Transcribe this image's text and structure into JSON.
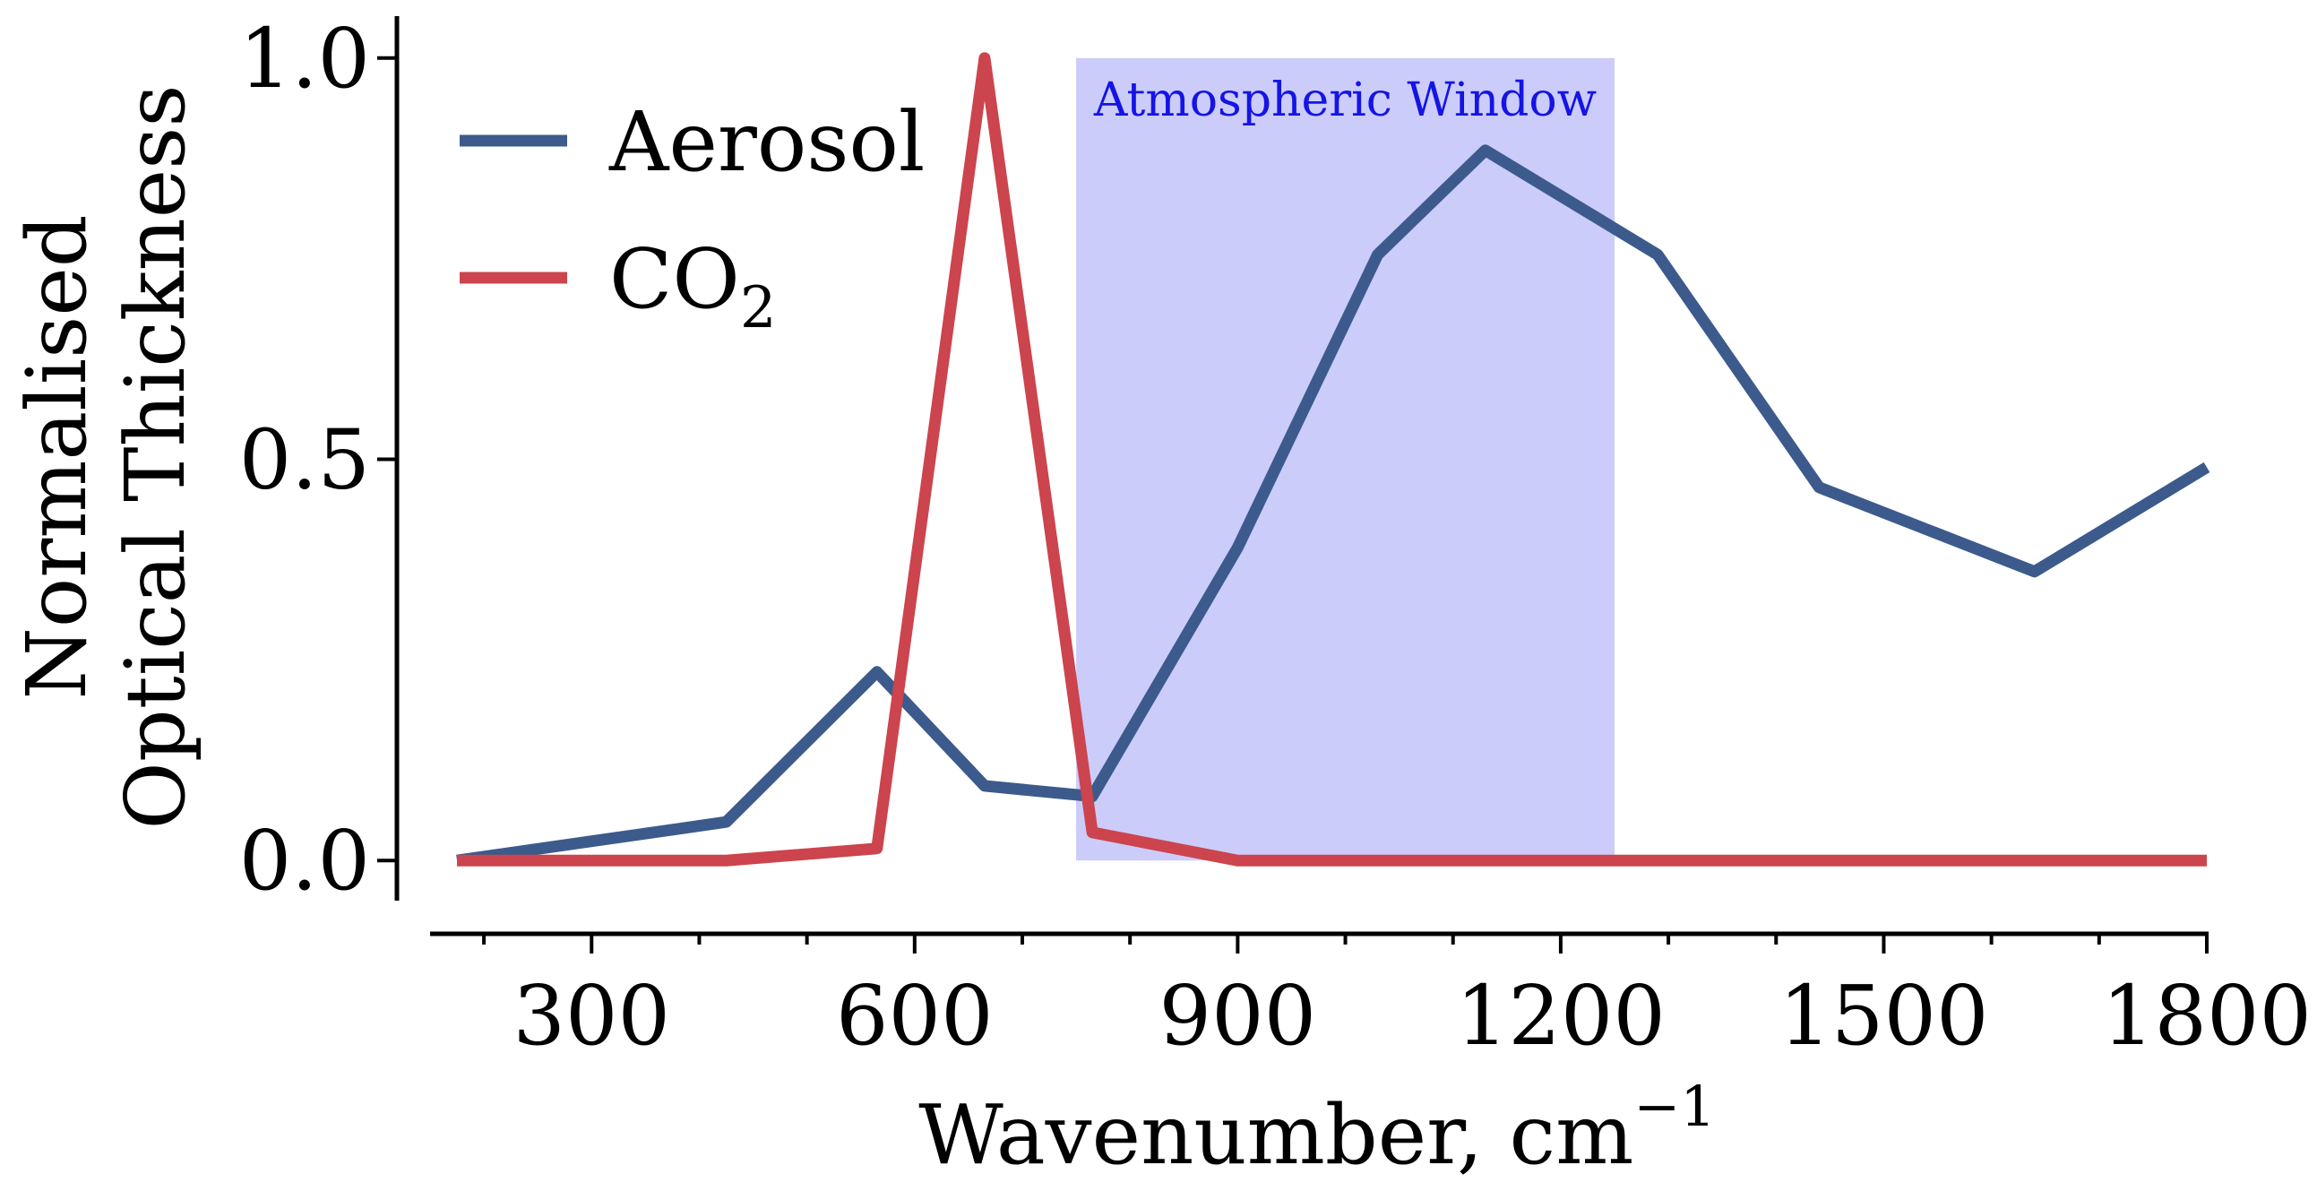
{
  "chart_data": {
    "type": "line",
    "xlabel": "Wavenumber, cm",
    "xlabel_superscript": "−1",
    "ylabel_line1": "Normalised",
    "ylabel_line2": "Optical Thickness",
    "xlim": [
      150,
      1800
    ],
    "ylim": [
      -0.05,
      1.05
    ],
    "x_ticks": [
      300,
      600,
      900,
      1200,
      1500,
      1800
    ],
    "x_tick_labels": [
      "300",
      "600",
      "900",
      "1200",
      "1500",
      "1800"
    ],
    "x_minor_ticks": [
      200,
      400,
      500,
      700,
      800,
      1000,
      1100,
      1300,
      1400,
      1600,
      1700
    ],
    "y_ticks": [
      0.0,
      0.5,
      1.0
    ],
    "y_tick_labels": [
      "0.0",
      "0.5",
      "1.0"
    ],
    "grid": false,
    "legend_position": "upper-left",
    "shaded_region": {
      "x_start": 750,
      "x_end": 1250,
      "label": "Atmospheric Window",
      "color": "#ccccfa",
      "label_color": "#1414e6"
    },
    "series": [
      {
        "name": "Aerosol",
        "color": "#3c5b8c",
        "x": [
          175,
          425,
          565,
          665,
          765,
          900,
          1030,
          1130,
          1290,
          1440,
          1640,
          1800
        ],
        "y": [
          0.0,
          0.048,
          0.235,
          0.093,
          0.08,
          0.39,
          0.755,
          0.885,
          0.755,
          0.465,
          0.36,
          0.49
        ]
      },
      {
        "name": "CO",
        "name_subscript": "2",
        "color": "#cc444d",
        "x": [
          175,
          425,
          565,
          665,
          765,
          900,
          1200,
          1800
        ],
        "y": [
          0.0,
          0.0,
          0.015,
          1.0,
          0.035,
          0.0,
          0.0,
          0.0
        ]
      }
    ]
  }
}
